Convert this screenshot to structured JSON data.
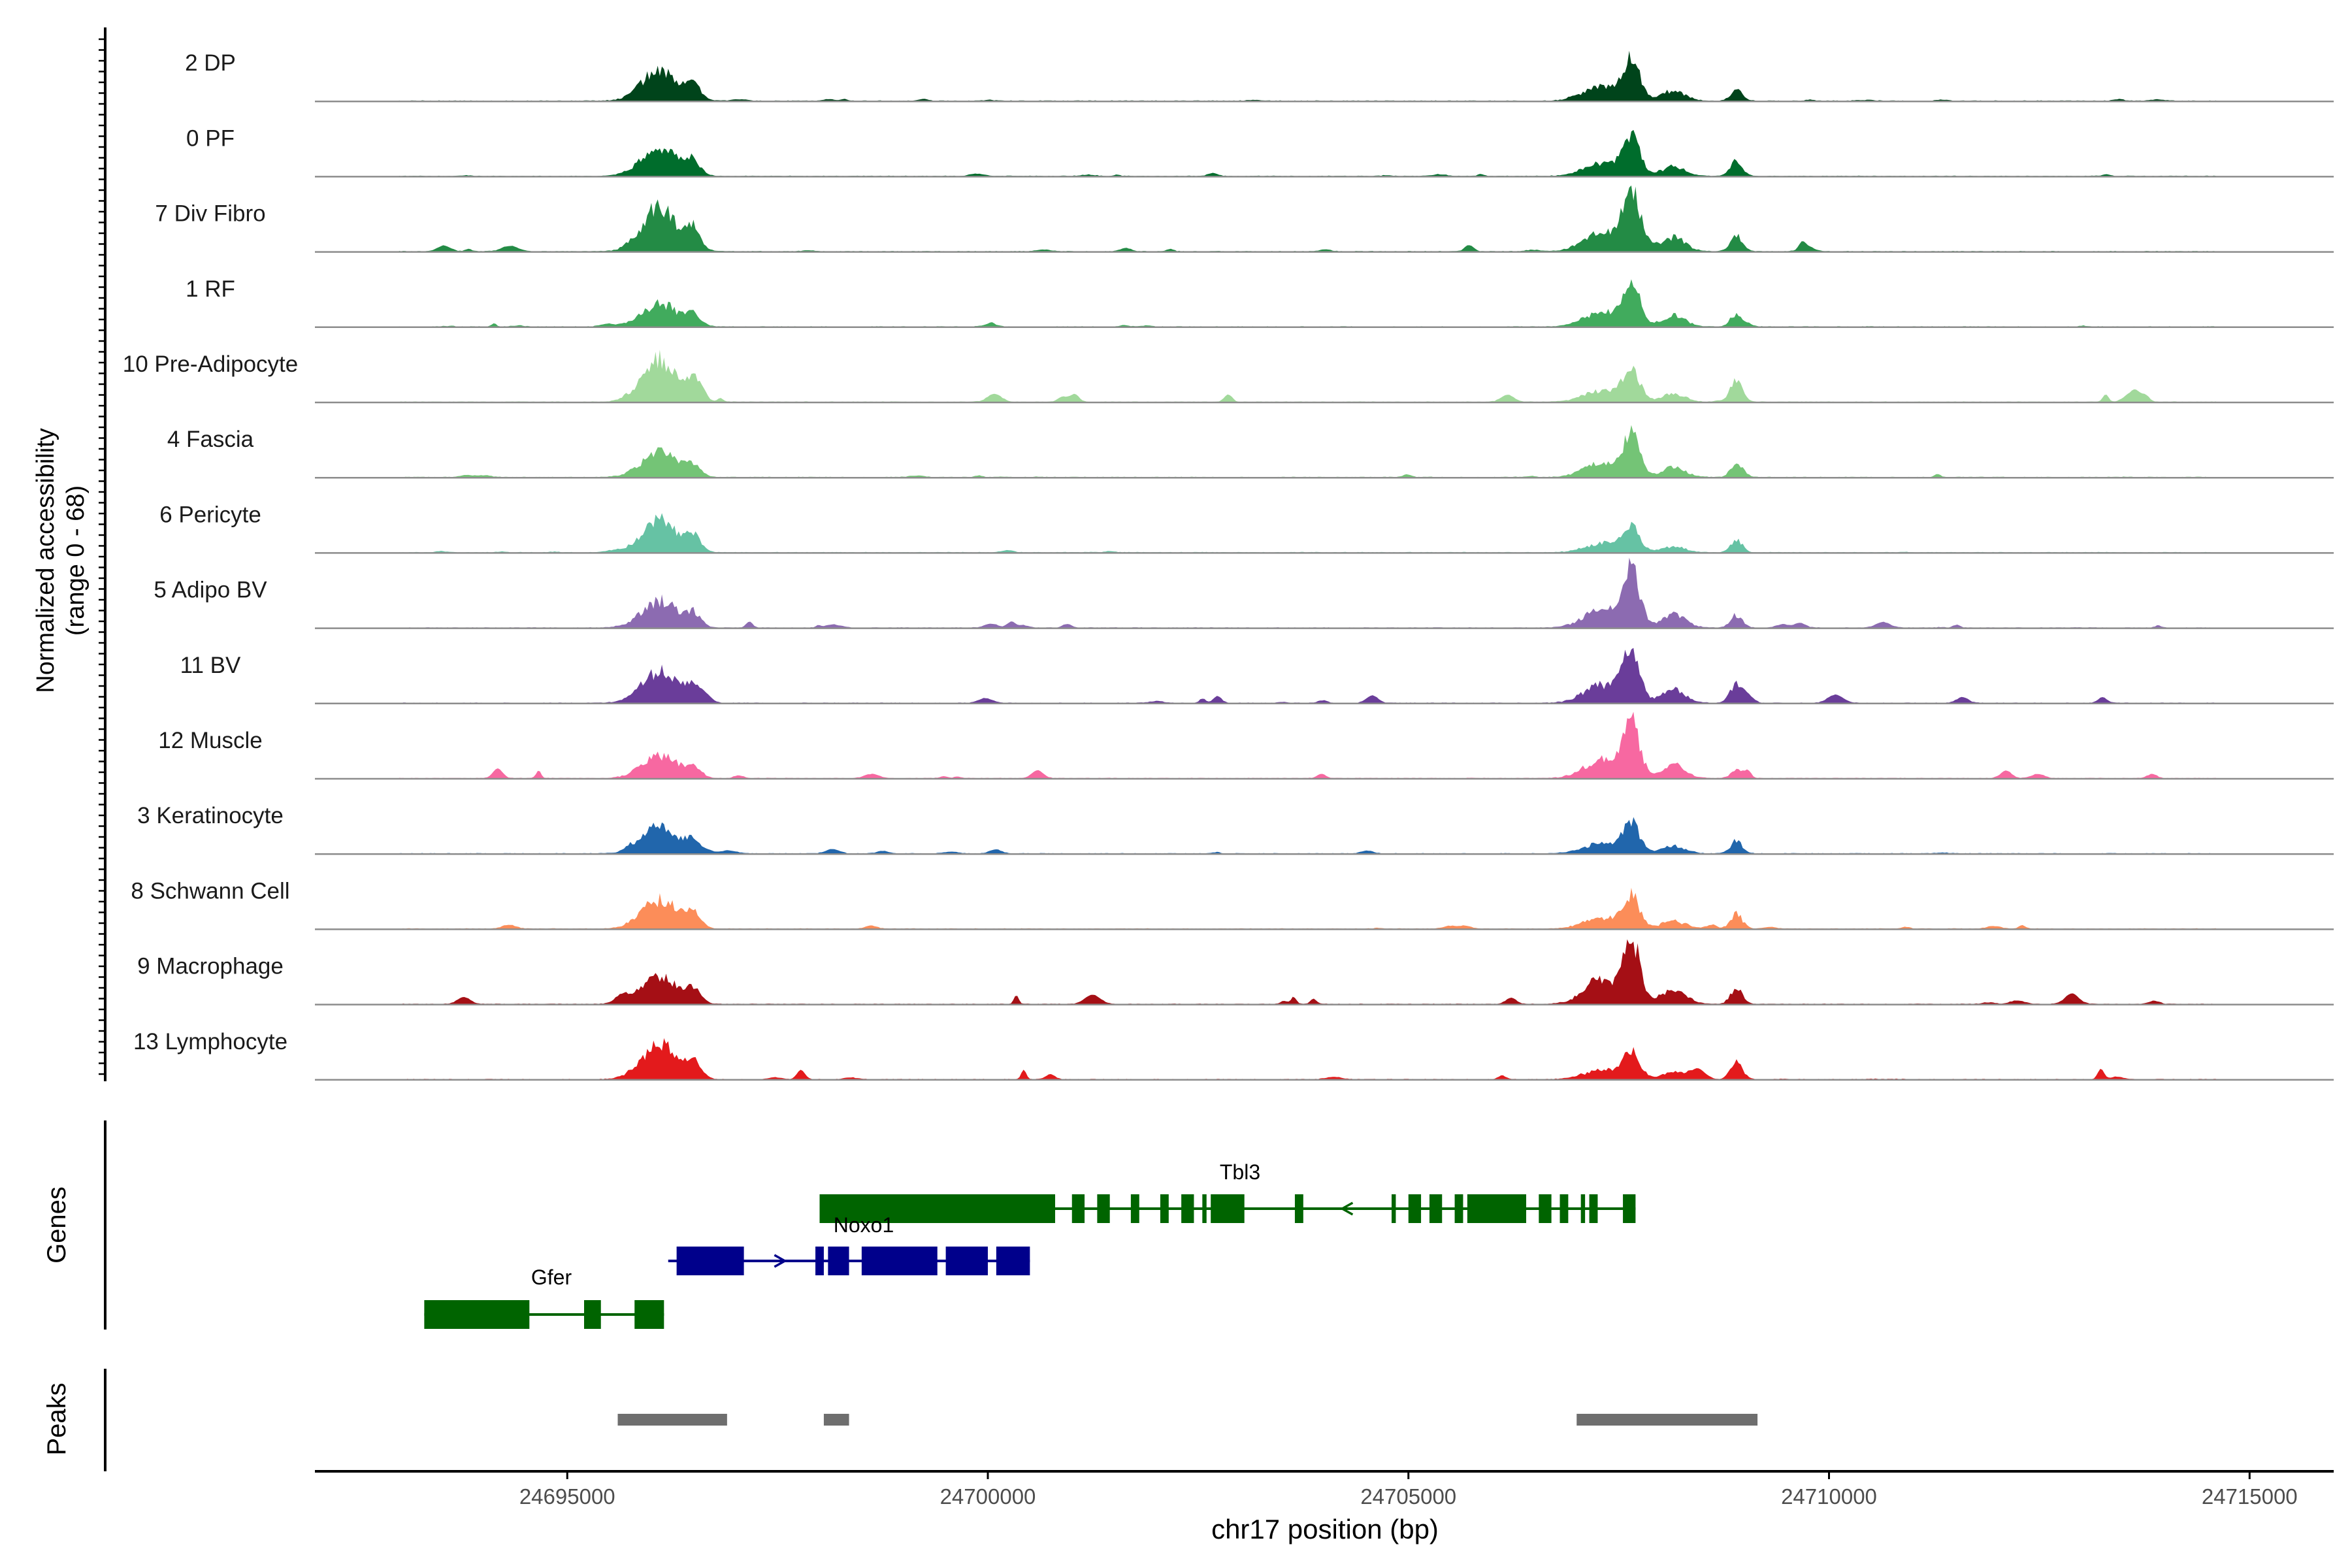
{
  "chart_data": {
    "type": "area",
    "title": "",
    "xlabel": "chr17 position (bp)",
    "ylabel_line1": "Normalized accessibility",
    "ylabel_line2": "(range 0 - 68)",
    "y_range": [
      0,
      68
    ],
    "x_range": [
      24692000,
      24716000
    ],
    "x_ticks": [
      24695000,
      24700000,
      24705000,
      24710000,
      24715000
    ],
    "x_tick_labels": [
      "24695000",
      "24700000",
      "24705000",
      "24710000",
      "24715000"
    ],
    "tracks": [
      {
        "name": "2 DP",
        "color": "#00441b",
        "peak_a": 30,
        "peak_b": 38,
        "peak_c": 10,
        "noise": 2
      },
      {
        "name": "0 PF",
        "color": "#006d2c",
        "peak_a": 28,
        "peak_b": 36,
        "peak_c": 14,
        "noise": 2
      },
      {
        "name": "7 Div Fibro",
        "color": "#238b45",
        "peak_a": 40,
        "peak_b": 54,
        "peak_c": 16,
        "noise": 6
      },
      {
        "name": "1 RF",
        "color": "#41ab5d",
        "peak_a": 22,
        "peak_b": 40,
        "peak_c": 12,
        "noise": 3
      },
      {
        "name": "10 Pre-Adipocyte",
        "color": "#a1d99b",
        "peak_a": 40,
        "peak_b": 30,
        "peak_c": 14,
        "noise": 8
      },
      {
        "name": "4 Fascia",
        "color": "#74c476",
        "peak_a": 24,
        "peak_b": 38,
        "peak_c": 12,
        "noise": 3
      },
      {
        "name": "6 Pericyte",
        "color": "#66c2a4",
        "peak_a": 30,
        "peak_b": 22,
        "peak_c": 12,
        "noise": 2
      },
      {
        "name": "5 Adipo BV",
        "color": "#8c6bb1",
        "peak_a": 26,
        "peak_b": 52,
        "peak_c": 12,
        "noise": 6
      },
      {
        "name": "11 BV",
        "color": "#6a3d9a",
        "peak_a": 30,
        "peak_b": 50,
        "peak_c": 18,
        "noise": 8
      },
      {
        "name": "12 Muscle",
        "color": "#f768a1",
        "peak_a": 22,
        "peak_b": 50,
        "peak_c": 8,
        "noise": 8
      },
      {
        "name": "3 Keratinocyte",
        "color": "#2166ac",
        "peak_a": 26,
        "peak_b": 28,
        "peak_c": 12,
        "noise": 3
      },
      {
        "name": "8 Schwann Cell",
        "color": "#fc8d59",
        "peak_a": 28,
        "peak_b": 30,
        "peak_c": 14,
        "noise": 4
      },
      {
        "name": "9 Macrophage",
        "color": "#a50f15",
        "peak_a": 26,
        "peak_b": 60,
        "peak_c": 16,
        "noise": 10
      },
      {
        "name": "13 Lymphocyte",
        "color": "#e31a1c",
        "peak_a": 34,
        "peak_b": 26,
        "peak_c": 16,
        "noise": 10
      }
    ],
    "genes_label": "Genes",
    "genes": [
      {
        "name": "Tbl3",
        "color": "#006400",
        "strand": "-",
        "start": 24698000,
        "end": 24707700,
        "exons": [
          [
            24698000,
            24700800
          ],
          [
            24701000,
            24701150
          ],
          [
            24701300,
            24701450
          ],
          [
            24701700,
            24701800
          ],
          [
            24702050,
            24702150
          ],
          [
            24702300,
            24702450
          ],
          [
            24702550,
            24702600
          ],
          [
            24702650,
            24703050
          ],
          [
            24703650,
            24703750
          ],
          [
            24704800,
            24704850
          ],
          [
            24705000,
            24705150
          ],
          [
            24705250,
            24705400
          ],
          [
            24705550,
            24705650
          ],
          [
            24705700,
            24706400
          ],
          [
            24706550,
            24706700
          ],
          [
            24706800,
            24706900
          ],
          [
            24707050,
            24707100
          ],
          [
            24707150,
            24707250
          ],
          [
            24707550,
            24707700
          ]
        ]
      },
      {
        "name": "Noxo1",
        "color": "#00008b",
        "strand": "+",
        "start": 24696200,
        "end": 24700500,
        "exons": [
          [
            24696300,
            24697100
          ],
          [
            24697950,
            24698050
          ],
          [
            24698100,
            24698350
          ],
          [
            24698500,
            24699400
          ],
          [
            24699500,
            24700000
          ],
          [
            24700100,
            24700500
          ]
        ]
      },
      {
        "name": "Gfer",
        "color": "#006400",
        "strand": "-",
        "start": 24693300,
        "end": 24696150,
        "exons": [
          [
            24693300,
            24694550
          ],
          [
            24695200,
            24695400
          ],
          [
            24695800,
            24696150
          ]
        ]
      }
    ],
    "peaks_label": "Peaks",
    "peaks": [
      [
        24695600,
        24696900
      ],
      [
        24698050,
        24698350
      ],
      [
        24707000,
        24709150
      ]
    ]
  }
}
